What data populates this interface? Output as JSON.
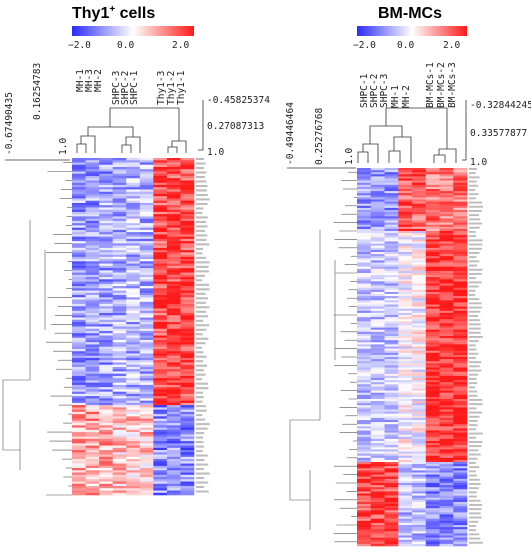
{
  "chart_data": [
    {
      "type": "heatmap",
      "title": "Thy1",
      "title_superscript": "+",
      "title_rest": " cells",
      "colorscale": {
        "min": -2.0,
        "mid": 0.0,
        "max": 2.0,
        "low_color": "#2a2aff",
        "mid_color": "#ffffff",
        "high_color": "#ff1a1a"
      },
      "colorbar_ticks": [
        "−2.0",
        "0.0",
        "2.0"
      ],
      "samples": [
        "MH-1",
        "MH-3",
        "MH-2",
        "SHPC-3",
        "SHPC-2",
        "SHPC-1",
        "Thy1-3",
        "Thy1-2",
        "Thy1-1"
      ],
      "column_dendrogram_values": [
        "-0.45825374",
        "0.27087313",
        "1.0"
      ],
      "row_dendrogram_values": [
        "-0.67490435",
        "0.16254783",
        "1.0"
      ],
      "rows": 150
    },
    {
      "type": "heatmap",
      "title": "BM-MCs",
      "colorscale": {
        "min": -2.0,
        "mid": 0.0,
        "max": 2.0,
        "low_color": "#2a2aff",
        "mid_color": "#ffffff",
        "high_color": "#ff1a1a"
      },
      "colorbar_ticks": [
        "−2.0",
        "0.0",
        "2.0"
      ],
      "samples": [
        "SHPC-1",
        "SHPC-2",
        "SHPC-3",
        "MH-1",
        "MH-2",
        "BM-MCs-1",
        "BM-MCs-2",
        "BM-MCs-3"
      ],
      "column_dendrogram_values": [
        "-0.32844245",
        "0.33577877",
        "1.0"
      ],
      "row_dendrogram_values": [
        "-0.49446464",
        "0.25276768",
        "1.0"
      ],
      "rows": 180
    }
  ]
}
